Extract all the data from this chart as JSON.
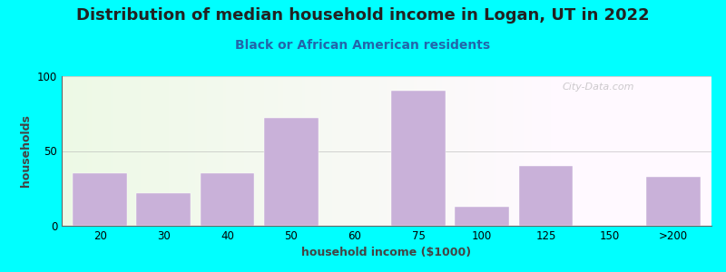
{
  "title": "Distribution of median household income in Logan, UT in 2022",
  "subtitle": "Black or African American residents",
  "xlabel": "household income ($1000)",
  "ylabel": "households",
  "bar_labels": [
    "20",
    "30",
    "40",
    "50",
    "60",
    "75",
    "100",
    "125",
    "150",
    ">200"
  ],
  "bar_values": [
    35,
    22,
    35,
    72,
    0,
    90,
    13,
    40,
    0,
    33
  ],
  "bar_color": "#C9B1D9",
  "ylim": [
    0,
    100
  ],
  "yticks": [
    0,
    50,
    100
  ],
  "background_color": "#00FFFF",
  "plot_bg_color": "#eef7e8",
  "title_fontsize": 13,
  "subtitle_fontsize": 10,
  "axis_label_fontsize": 9,
  "tick_fontsize": 8.5,
  "watermark": "City-Data.com",
  "title_color": "#222222",
  "subtitle_color": "#2266aa"
}
